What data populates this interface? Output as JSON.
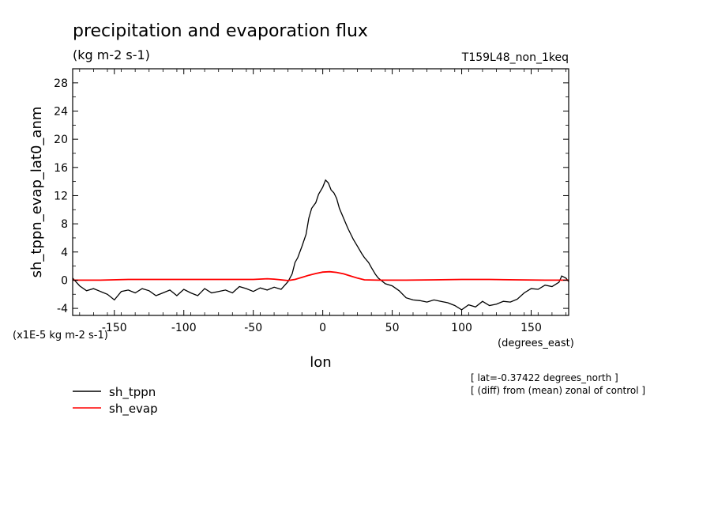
{
  "chart_data": {
    "type": "line",
    "title": "precipitation and evaporation flux",
    "units_label": "(kg m-2 s-1)",
    "experiment": "T159L48_non_1keq",
    "ylabel": "sh_tppn_evap_lat0_anm",
    "xlabel": "lon",
    "x_units": "(degrees_east)",
    "y_scale_note": "(x1E-5 kg m-2 s-1)",
    "notes": [
      "[ lat=-0.37422 degrees_north ]",
      "[ (diff) from (mean) zonal of control ]"
    ],
    "xlim": [
      -180,
      177
    ],
    "ylim": [
      -5,
      30
    ],
    "x_ticks": [
      -150,
      -100,
      -50,
      0,
      50,
      100,
      150
    ],
    "y_ticks": [
      -4,
      0,
      4,
      8,
      12,
      16,
      20,
      24,
      28
    ],
    "x_tick_labels": [
      "-150",
      "-100",
      "-50",
      "0",
      "50",
      "100",
      "150"
    ],
    "y_tick_labels": [
      "-4",
      "0",
      "4",
      "8",
      "12",
      "16",
      "20",
      "24",
      "28"
    ],
    "series": [
      {
        "name": "sh_tppn",
        "color": "#000000",
        "x": [
          -180,
          -175,
          -170,
          -165,
          -160,
          -155,
          -150,
          -145,
          -140,
          -135,
          -130,
          -125,
          -120,
          -115,
          -110,
          -105,
          -100,
          -95,
          -90,
          -85,
          -80,
          -75,
          -70,
          -65,
          -60,
          -55,
          -50,
          -45,
          -40,
          -35,
          -30,
          -25,
          -22,
          -20,
          -18,
          -15,
          -12,
          -10,
          -8,
          -5,
          -3,
          0,
          2,
          4,
          6,
          8,
          10,
          12,
          15,
          18,
          20,
          22,
          25,
          28,
          30,
          33,
          35,
          38,
          40,
          45,
          50,
          55,
          60,
          65,
          70,
          75,
          80,
          85,
          90,
          95,
          100,
          105,
          110,
          115,
          120,
          125,
          130,
          135,
          140,
          145,
          150,
          155,
          160,
          165,
          170,
          172,
          175,
          177
        ],
        "y": [
          0.3,
          -0.8,
          -1.5,
          -1.2,
          -1.6,
          -2.0,
          -2.8,
          -1.6,
          -1.4,
          -1.8,
          -1.2,
          -1.5,
          -2.2,
          -1.8,
          -1.4,
          -2.2,
          -1.3,
          -1.8,
          -2.2,
          -1.2,
          -1.8,
          -1.6,
          -1.4,
          -1.8,
          -0.9,
          -1.2,
          -1.6,
          -1.1,
          -1.4,
          -1.0,
          -1.3,
          -0.2,
          0.9,
          2.5,
          3.2,
          4.8,
          6.5,
          8.8,
          10.2,
          11.0,
          12.2,
          13.2,
          14.2,
          13.8,
          12.8,
          12.4,
          11.6,
          10.2,
          8.8,
          7.4,
          6.6,
          5.8,
          4.8,
          3.8,
          3.2,
          2.5,
          1.8,
          0.8,
          0.3,
          -0.5,
          -0.8,
          -1.5,
          -2.5,
          -2.8,
          -2.9,
          -3.1,
          -2.8,
          -3.0,
          -3.2,
          -3.6,
          -4.2,
          -3.5,
          -3.8,
          -3.0,
          -3.6,
          -3.4,
          -3.0,
          -3.1,
          -2.7,
          -1.8,
          -1.2,
          -1.3,
          -0.7,
          -0.9,
          -0.3,
          0.6,
          0.3,
          -0.2
        ]
      },
      {
        "name": "sh_evap",
        "color": "#ff0000",
        "x": [
          -180,
          -160,
          -140,
          -120,
          -100,
          -80,
          -60,
          -50,
          -40,
          -35,
          -30,
          -25,
          -20,
          -15,
          -10,
          -5,
          0,
          5,
          10,
          15,
          20,
          25,
          30,
          40,
          50,
          60,
          80,
          100,
          120,
          140,
          160,
          177
        ],
        "y": [
          0.0,
          0.0,
          0.1,
          0.1,
          0.1,
          0.1,
          0.1,
          0.1,
          0.2,
          0.15,
          0.05,
          -0.05,
          0.1,
          0.4,
          0.7,
          0.95,
          1.15,
          1.2,
          1.1,
          0.9,
          0.6,
          0.3,
          0.05,
          0.0,
          0.0,
          0.0,
          0.05,
          0.1,
          0.1,
          0.05,
          0.0,
          0.0
        ]
      }
    ]
  }
}
